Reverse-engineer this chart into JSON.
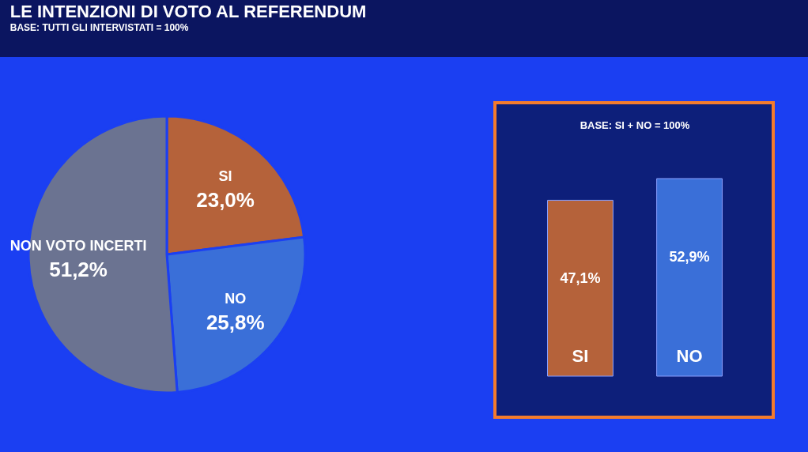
{
  "chart_data": [
    {
      "type": "pie",
      "title": "LE INTENZIONI DI VOTO AL REFERENDUM",
      "subtitle": "BASE: TUTTI GLI INTERVISTATI = 100%",
      "categories": [
        "SI",
        "NO",
        "NON VOTO INCERTI"
      ],
      "values": [
        23.0,
        25.8,
        51.2
      ],
      "colors": [
        "#b5623a",
        "#3a6fd8",
        "#6b7391"
      ],
      "value_labels": [
        "23,0%",
        "25,8%",
        "51,2%"
      ]
    },
    {
      "type": "bar",
      "title": "BASE: SI + NO = 100%",
      "categories": [
        "SI",
        "NO"
      ],
      "values": [
        47.1,
        52.9
      ],
      "colors": [
        "#b5623a",
        "#3a6fd8"
      ],
      "value_labels": [
        "47,1%",
        "52,9%"
      ]
    }
  ]
}
